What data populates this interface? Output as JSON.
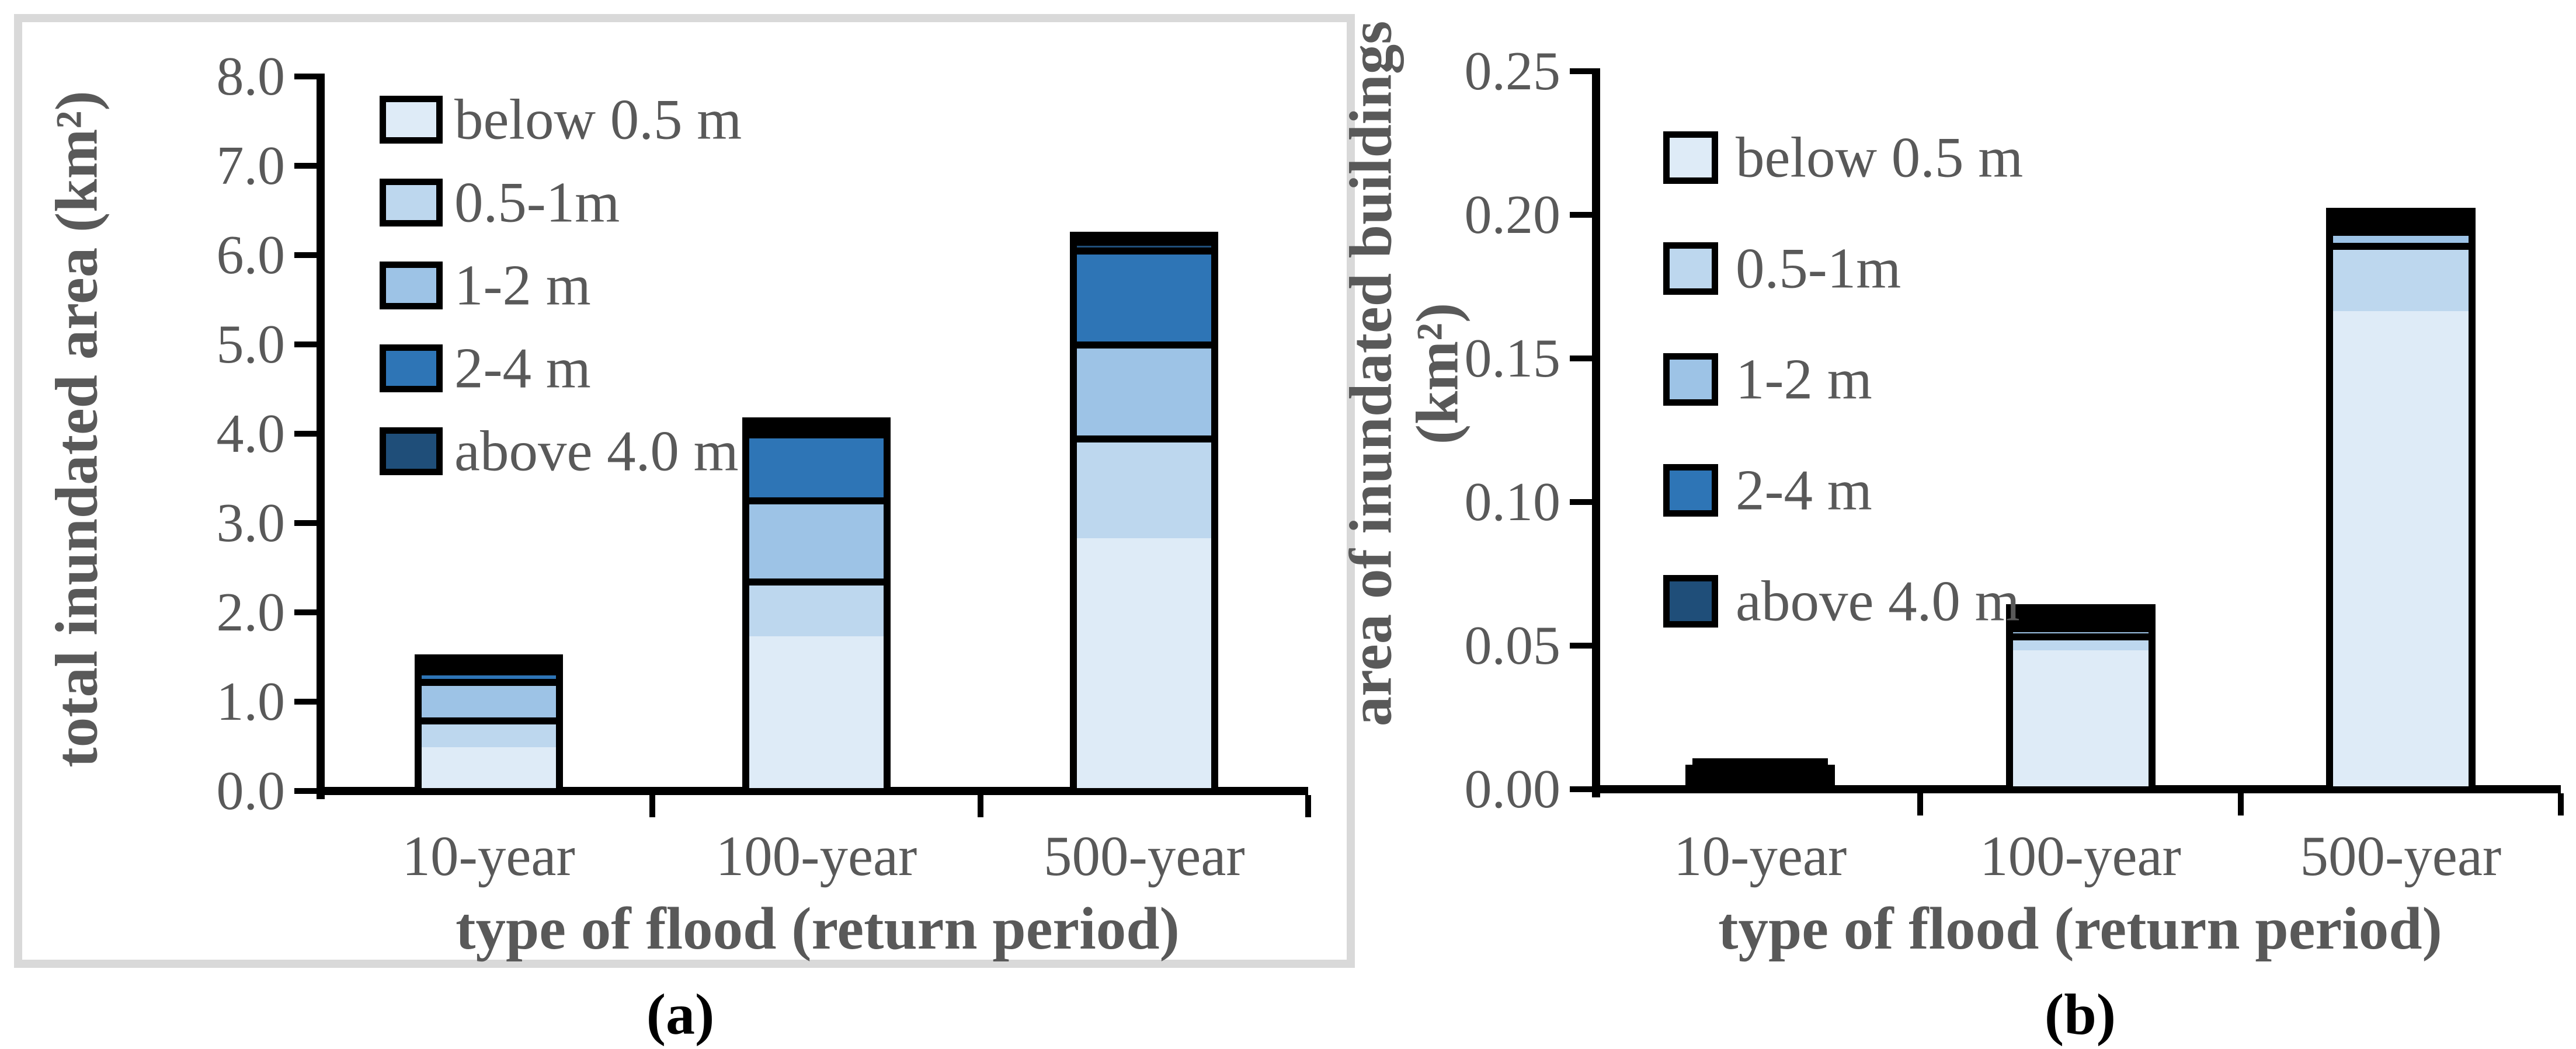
{
  "figure": {
    "background": "#ffffff",
    "frame_color": "#d9d9d9",
    "text_color": "#595959",
    "axis_color": "#000000"
  },
  "legend": {
    "labels": [
      "below 0.5 m",
      "0.5-1m",
      "1-2 m",
      "2-4 m",
      "above 4.0 m"
    ],
    "colors": [
      "#DEEBF7",
      "#BDD7EE",
      "#9DC3E6",
      "#2E75B6",
      "#1F4E79"
    ]
  },
  "chart_data": [
    {
      "type": "bar",
      "stacked": true,
      "caption": "(a)",
      "xlabel": "type of flood (return period)",
      "ylabel": "total inundated area (km²)",
      "categories": [
        "10-year",
        "100-year",
        "500-year"
      ],
      "series": [
        {
          "name": "below 0.5 m",
          "color": "#DEEBF7",
          "values": [
            0.48,
            1.73,
            2.8
          ]
        },
        {
          "name": "0.5-1m",
          "color": "#BDD7EE",
          "values": [
            0.35,
            0.66,
            1.15
          ]
        },
        {
          "name": "1-2 m",
          "color": "#9DC3E6",
          "values": [
            0.45,
            0.92,
            1.05
          ]
        },
        {
          "name": "2-4 m",
          "color": "#2E75B6",
          "values": [
            0.12,
            0.75,
            1.05
          ]
        },
        {
          "name": "above 4.0 m",
          "color": "#1F4E79",
          "values": [
            0.02,
            0.01,
            0.1
          ]
        }
      ],
      "totals": [
        1.42,
        4.07,
        6.15
      ],
      "ylim": [
        0,
        8
      ],
      "ytick_values": [
        0,
        1,
        2,
        3,
        4,
        5,
        6,
        7,
        8
      ],
      "yticks": [
        "0.0",
        "1.0",
        "2.0",
        "3.0",
        "4.0",
        "5.0",
        "6.0",
        "7.0",
        "8.0"
      ],
      "grid": false,
      "legend_position": "upper-left-inside"
    },
    {
      "type": "bar",
      "stacked": true,
      "caption": "(b)",
      "xlabel": "type of flood (return period)",
      "ylabel": "area of inundated buildings (km²)",
      "ylabel_lines": [
        "area of inundated buildings",
        "(km²)"
      ],
      "categories": [
        "10-year",
        "100-year",
        "500-year"
      ],
      "series": [
        {
          "name": "below 0.5 m",
          "color": "#DEEBF7",
          "values": [
            0.004,
            0.051,
            0.168
          ]
        },
        {
          "name": "0.5-1m",
          "color": "#BDD7EE",
          "values": [
            0.001,
            0.006,
            0.024
          ]
        },
        {
          "name": "1-2 m",
          "color": "#9DC3E6",
          "values": [
            0.0,
            0.003,
            0.005
          ]
        },
        {
          "name": "2-4 m",
          "color": "#2E75B6",
          "values": [
            0.0,
            0.001,
            0.001
          ]
        },
        {
          "name": "above 4.0 m",
          "color": "#1F4E79",
          "values": [
            0.0,
            0.0,
            0.001
          ]
        }
      ],
      "totals": [
        0.005,
        0.061,
        0.199
      ],
      "ylim": [
        0,
        0.25
      ],
      "ytick_values": [
        0,
        0.05,
        0.1,
        0.15,
        0.2,
        0.25
      ],
      "yticks": [
        "0.00",
        "0.05",
        "0.10",
        "0.15",
        "0.20",
        "0.25"
      ],
      "grid": false,
      "legend_position": "upper-left-inside"
    }
  ]
}
